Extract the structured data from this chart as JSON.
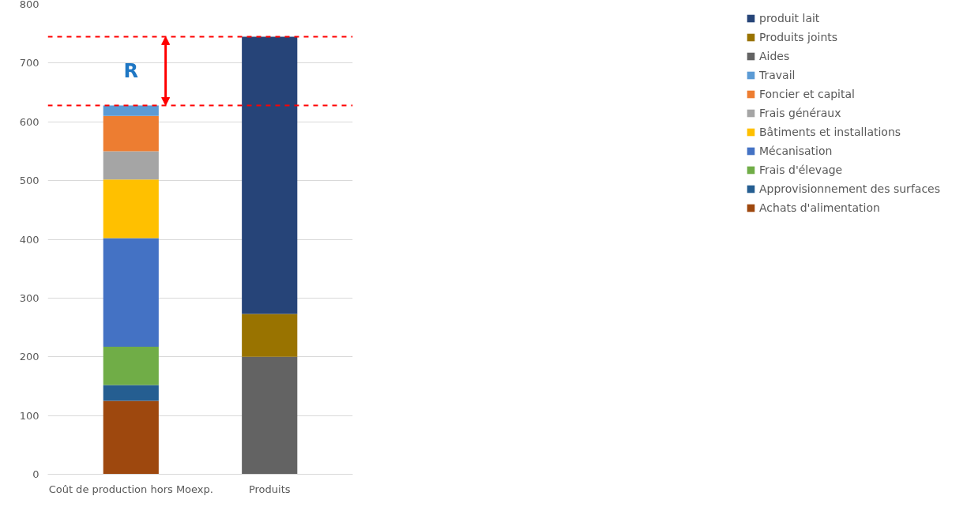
{
  "chart_data": {
    "type": "bar",
    "stacked": true,
    "categories": [
      "Coût de production hors Moexp.",
      "Produits"
    ],
    "series": [
      {
        "name": "Achats d'alimentation",
        "color": "#9e480e",
        "values": [
          125,
          null
        ]
      },
      {
        "name": "Approvisionnement des surfaces",
        "color": "#255e91",
        "values": [
          27,
          null
        ]
      },
      {
        "name": "Frais d'élevage",
        "color": "#70ad47",
        "values": [
          65,
          null
        ]
      },
      {
        "name": "Mécanisation",
        "color": "#4472c4",
        "values": [
          185,
          null
        ]
      },
      {
        "name": "Bâtiments et installations",
        "color": "#ffc000",
        "values": [
          100,
          null
        ]
      },
      {
        "name": "Frais généraux",
        "color": "#a5a5a5",
        "values": [
          48,
          null
        ]
      },
      {
        "name": "Foncier et capital",
        "color": "#ed7d31",
        "values": [
          60,
          null
        ]
      },
      {
        "name": "Travail",
        "color": "#5b9bd5",
        "values": [
          18,
          null
        ]
      },
      {
        "name": "Aides",
        "color": "#636363",
        "values": [
          null,
          200
        ]
      },
      {
        "name": "Produits joints",
        "color": "#997300",
        "values": [
          null,
          73
        ]
      },
      {
        "name": "produit lait",
        "color": "#264478",
        "values": [
          null,
          472
        ]
      }
    ],
    "ylim": [
      0,
      800
    ],
    "yticks": [
      0,
      100,
      200,
      300,
      400,
      500,
      600,
      700,
      800
    ],
    "grid": "y",
    "legend": "right",
    "ref_lines": [
      {
        "axis": "y",
        "value": 628,
        "color": "#ff0000",
        "line_style": "dashed"
      },
      {
        "axis": "y",
        "value": 745,
        "color": "#ff0000",
        "line_style": "dashed"
      }
    ],
    "annotations": [
      "R"
    ]
  }
}
